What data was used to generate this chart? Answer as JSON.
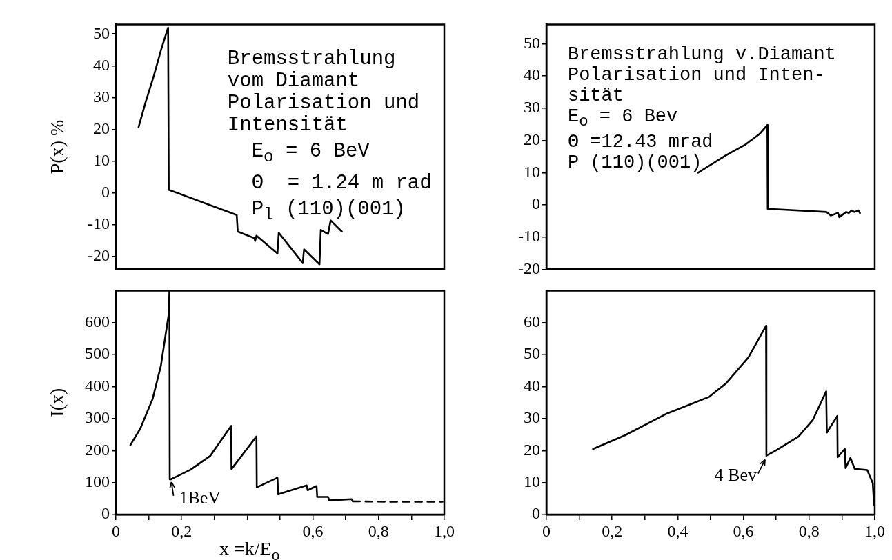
{
  "chart_data": [
    {
      "type": "line",
      "ylabel": "P(x) %",
      "xlim": [
        0,
        1
      ],
      "ylim": [
        -24,
        53
      ],
      "yticks": [
        -20,
        -10,
        0,
        10,
        20,
        30,
        40,
        50
      ],
      "tick_labels": "y",
      "grid": false,
      "legend": false,
      "marker": "none",
      "annotations": [
        "Bremsstrahlung",
        "vom Diamant",
        "Polarisation und",
        "Intensität",
        "  E$_{o}$ = 6 BeV",
        "  Θ  = 1.24 m rad",
        "  P$_{l}$ (110)(001)"
      ],
      "series": [
        {
          "color": "#000000",
          "line_style": "solid",
          "x": [
            0.069,
            0.09,
            0.116,
            0.137,
            0.159,
            0.161,
            0.368,
            0.371,
            0.422,
            0.424,
            0.428,
            0.492,
            0.496,
            0.569,
            0.573,
            0.62,
            0.624,
            0.646,
            0.654,
            0.688
          ],
          "values": [
            20.7,
            28.4,
            37,
            44.8,
            52,
            1,
            -6.9,
            -12.1,
            -14.2,
            -15.1,
            -13.4,
            -19,
            -12.5,
            -22,
            -17.7,
            -22.4,
            -11.6,
            -12.9,
            -8.6,
            -12.1
          ]
        }
      ]
    },
    {
      "type": "line",
      "xlim": [
        0,
        1
      ],
      "ylim": [
        -20,
        56
      ],
      "yticks": [
        -20,
        -10,
        0,
        10,
        20,
        30,
        40,
        50
      ],
      "tick_labels": "y",
      "grid": false,
      "legend": false,
      "marker": "none",
      "annotations": [
        "Bremsstrahlung v.Diamant",
        "Polarisation und Inten-",
        "sität",
        "E$_{o}$ = 6 Bev",
        "Θ =12.43 mrad",
        "P (110)(001)"
      ],
      "series": [
        {
          "color": "#000000",
          "line_style": "solid",
          "x": [
            0.462,
            0.547,
            0.607,
            0.649,
            0.673,
            0.674,
            0.853,
            0.866,
            0.888,
            0.892,
            0.913,
            0.921,
            0.93,
            0.938,
            0.951,
            0.955
          ],
          "values": [
            10,
            15.4,
            18.8,
            22,
            24.8,
            -1.2,
            -2.2,
            -3.3,
            -2.5,
            -3.8,
            -2.2,
            -2.5,
            -1.7,
            -2.2,
            -1.7,
            -2.5
          ]
        }
      ]
    },
    {
      "type": "line",
      "ylabel": "I(x)",
      "xlabel": "x =k/E$_{o}$",
      "xlim": [
        0,
        1
      ],
      "ylim": [
        0,
        700
      ],
      "yticks": [
        0,
        100,
        200,
        300,
        400,
        500,
        600
      ],
      "xticks": [
        0,
        {
          "value": 0.1,
          "label": null
        },
        {
          "value": 0.2,
          "label": "0,2"
        },
        {
          "value": 0.3,
          "label": null
        },
        {
          "value": 0.4,
          "label": null
        },
        {
          "value": 0.5,
          "label": null
        },
        {
          "value": 0.6,
          "label": "0,6"
        },
        {
          "value": 0.7,
          "label": null
        },
        {
          "value": 0.8,
          "label": "0,8"
        },
        {
          "value": 0.9,
          "label": null
        },
        {
          "value": 1,
          "label": "1,0"
        }
      ],
      "grid": false,
      "legend": false,
      "marker": "none",
      "annotations": [
        {
          "text": "1BeV",
          "x": 0.167,
          "y": 110
        }
      ],
      "series": [
        {
          "color": "#000000",
          "line_style": "solid",
          "x": [
            0.044,
            0.074,
            0.112,
            0.137,
            0.161,
            0.163,
            0.164,
            0.167,
            0.227,
            0.287,
            0.351,
            0.352,
            0.428,
            0.429,
            0.492,
            0.494,
            0.581,
            0.584,
            0.611,
            0.613,
            0.646,
            0.65,
            0.718,
            0.722
          ],
          "values": [
            217,
            268,
            362,
            465,
            627,
            700,
            110,
            110,
            140,
            183,
            277,
            142,
            244,
            85,
            115,
            63,
            91,
            76,
            89,
            55,
            55,
            44,
            48,
            41
          ]
        },
        {
          "color": "#000000",
          "line_style": "dashed",
          "x": [
            0.722,
            0.85,
            0.995
          ],
          "values": [
            41,
            40,
            40
          ]
        }
      ]
    },
    {
      "type": "line",
      "xlim": [
        0,
        1
      ],
      "ylim": [
        0,
        70
      ],
      "yticks": [
        0,
        10,
        20,
        30,
        40,
        50,
        60
      ],
      "xticks": [
        0,
        {
          "value": 0.1,
          "label": null
        },
        {
          "value": 0.2,
          "label": "0,2"
        },
        {
          "value": 0.3,
          "label": null
        },
        {
          "value": 0.4,
          "label": "0,4"
        },
        {
          "value": 0.5,
          "label": null
        },
        {
          "value": 0.6,
          "label": "0,6"
        },
        {
          "value": 0.7,
          "label": null
        },
        {
          "value": 0.8,
          "label": "0,8"
        },
        {
          "value": 0.9,
          "label": null
        },
        {
          "value": 1,
          "label": "1,0"
        }
      ],
      "grid": false,
      "legend": false,
      "marker": "none",
      "annotations": [
        {
          "text": "4 Bev",
          "x": 0.67,
          "y": 18
        }
      ],
      "series": [
        {
          "color": "#000000",
          "line_style": "solid",
          "x": [
            0.142,
            0.24,
            0.368,
            0.496,
            0.547,
            0.615,
            0.669,
            0.67,
            0.7,
            0.768,
            0.811,
            0.852,
            0.854,
            0.886,
            0.887,
            0.909,
            0.911,
            0.926,
            0.939,
            0.977,
            0.994,
            0.998
          ],
          "values": [
            20.5,
            24.8,
            31.6,
            36.8,
            41,
            49.1,
            59,
            18.4,
            20.1,
            24.4,
            29.5,
            38.5,
            25.6,
            30.8,
            17.9,
            20.5,
            14.5,
            17.7,
            14.3,
            13.9,
            9.8,
            3
          ]
        }
      ]
    }
  ]
}
